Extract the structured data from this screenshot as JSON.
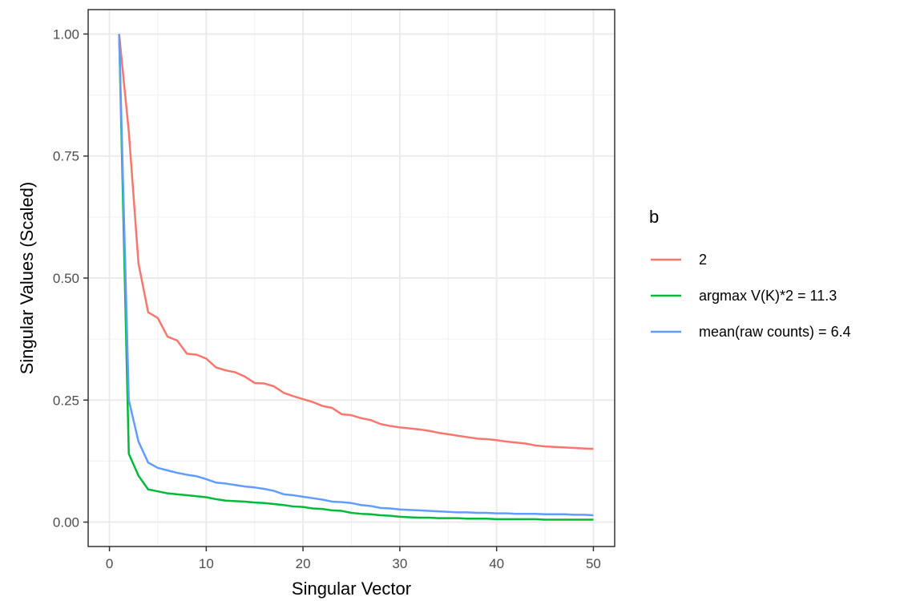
{
  "chart_data": {
    "type": "line",
    "title": "",
    "xlabel": "Singular Vector",
    "ylabel": "Singular Values (Scaled)",
    "xlim": [
      -2.2,
      52.2
    ],
    "ylim": [
      -0.05,
      1.05
    ],
    "x_ticks": [
      0,
      10,
      20,
      30,
      40,
      50
    ],
    "x_tick_labels": [
      "0",
      "10",
      "20",
      "30",
      "40",
      "50"
    ],
    "y_ticks": [
      0,
      0.25,
      0.5,
      0.75,
      1.0
    ],
    "y_tick_labels": [
      "0.00",
      "0.25",
      "0.50",
      "0.75",
      "1.00"
    ],
    "grid": true,
    "legend": {
      "title": "b",
      "position": "right"
    },
    "x": [
      1,
      2,
      3,
      4,
      5,
      6,
      7,
      8,
      9,
      10,
      11,
      12,
      13,
      14,
      15,
      16,
      17,
      18,
      19,
      20,
      21,
      22,
      23,
      24,
      25,
      26,
      27,
      28,
      29,
      30,
      31,
      32,
      33,
      34,
      35,
      36,
      37,
      38,
      39,
      40,
      41,
      42,
      43,
      44,
      45,
      46,
      47,
      48,
      49,
      50
    ],
    "series": [
      {
        "name": "2",
        "color": "#F8766D",
        "values": [
          1.0,
          0.8,
          0.53,
          0.43,
          0.418,
          0.38,
          0.372,
          0.345,
          0.343,
          0.335,
          0.317,
          0.311,
          0.307,
          0.298,
          0.285,
          0.284,
          0.278,
          0.265,
          0.258,
          0.252,
          0.246,
          0.238,
          0.234,
          0.221,
          0.219,
          0.213,
          0.209,
          0.201,
          0.197,
          0.194,
          0.192,
          0.19,
          0.187,
          0.183,
          0.18,
          0.177,
          0.174,
          0.171,
          0.17,
          0.168,
          0.165,
          0.163,
          0.161,
          0.157,
          0.155,
          0.154,
          0.153,
          0.152,
          0.151,
          0.15
        ]
      },
      {
        "name": "argmax V(K)*2 = 11.3",
        "color": "#00BA38",
        "values": [
          1.0,
          0.14,
          0.095,
          0.067,
          0.063,
          0.059,
          0.057,
          0.055,
          0.053,
          0.051,
          0.047,
          0.044,
          0.043,
          0.042,
          0.04,
          0.039,
          0.037,
          0.035,
          0.032,
          0.031,
          0.028,
          0.027,
          0.024,
          0.023,
          0.019,
          0.017,
          0.016,
          0.014,
          0.013,
          0.011,
          0.01,
          0.009,
          0.009,
          0.008,
          0.008,
          0.008,
          0.007,
          0.007,
          0.007,
          0.006,
          0.006,
          0.006,
          0.006,
          0.006,
          0.005,
          0.005,
          0.005,
          0.005,
          0.005,
          0.005
        ]
      },
      {
        "name": "mean(raw counts) = 6.4",
        "color": "#619CFF",
        "values": [
          1.0,
          0.25,
          0.165,
          0.122,
          0.111,
          0.106,
          0.101,
          0.097,
          0.094,
          0.088,
          0.081,
          0.079,
          0.076,
          0.073,
          0.071,
          0.068,
          0.064,
          0.057,
          0.055,
          0.052,
          0.049,
          0.046,
          0.042,
          0.041,
          0.039,
          0.035,
          0.033,
          0.029,
          0.028,
          0.026,
          0.025,
          0.024,
          0.023,
          0.022,
          0.021,
          0.02,
          0.02,
          0.019,
          0.019,
          0.018,
          0.018,
          0.017,
          0.017,
          0.017,
          0.016,
          0.016,
          0.016,
          0.015,
          0.015,
          0.014
        ]
      }
    ]
  }
}
